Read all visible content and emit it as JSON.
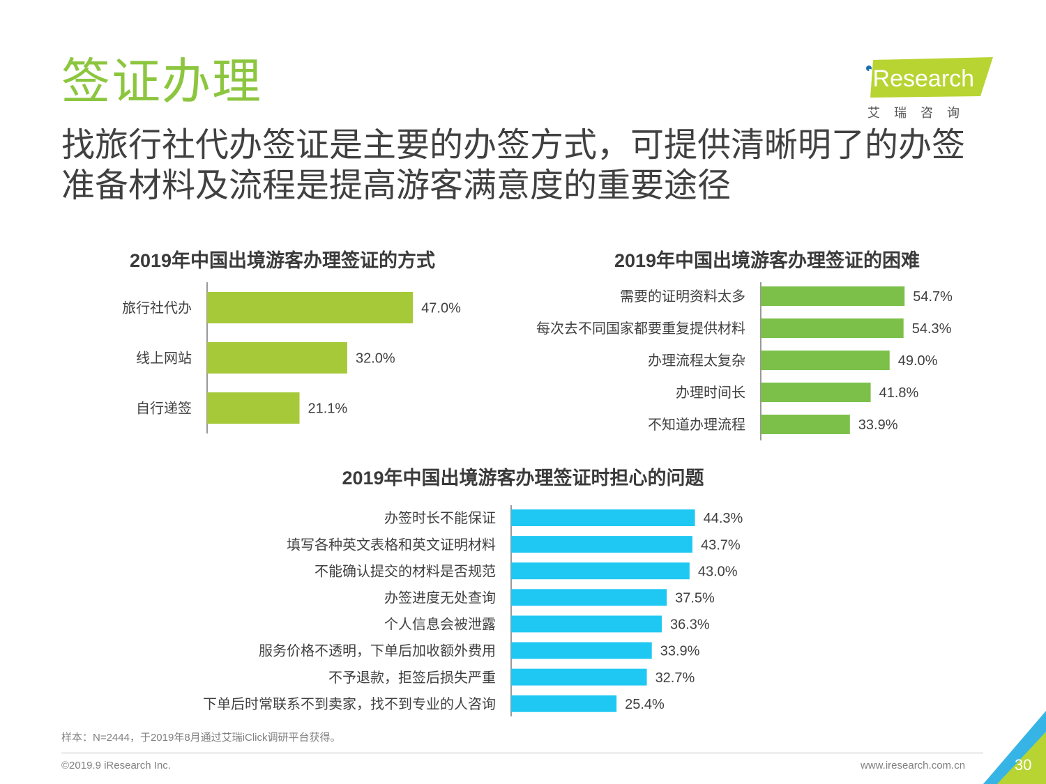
{
  "header": {
    "title": "签证办理",
    "subtitle": "找旅行社代办签证是主要的办签方式，可提供清晰明了的办签准备材料及流程是提高游客满意度的重要途径"
  },
  "logo": {
    "brand": "iResearch",
    "brand_cn": "艾瑞咨询",
    "colors": {
      "green": "#b8d432",
      "blue": "#1a6fb5"
    }
  },
  "colors": {
    "title_green": "#8cc63f",
    "bar_lime": "#a6c93a",
    "bar_green": "#7cc04a",
    "bar_cyan": "#1fc8f2"
  },
  "chart_data": [
    {
      "type": "bar",
      "orientation": "horizontal",
      "title": "2019年中国出境游客办理签证的方式",
      "categories": [
        "旅行社代办",
        "线上网站",
        "自行递签"
      ],
      "values": [
        47.0,
        32.0,
        21.1
      ],
      "value_labels": [
        "47.0%",
        "32.0%",
        "21.1%"
      ],
      "color": "#a6c93a"
    },
    {
      "type": "bar",
      "orientation": "horizontal",
      "title": "2019年中国出境游客办理签证的困难",
      "categories": [
        "需要的证明资料太多",
        "每次去不同国家都要重复提供材料",
        "办理流程太复杂",
        "办理时间长",
        "不知道办理流程"
      ],
      "values": [
        54.7,
        54.3,
        49.0,
        41.8,
        33.9
      ],
      "value_labels": [
        "54.7%",
        "54.3%",
        "49.0%",
        "41.8%",
        "33.9%"
      ],
      "color": "#7cc04a"
    },
    {
      "type": "bar",
      "orientation": "horizontal",
      "title": "2019年中国出境游客办理签证时担心的问题",
      "categories": [
        "办签时长不能保证",
        "填写各种英文表格和英文证明材料",
        "不能确认提交的材料是否规范",
        "办签进度无处查询",
        "个人信息会被泄露",
        "服务价格不透明，下单后加收额外费用",
        "不予退款，拒签后损失严重",
        "下单后时常联系不到卖家，找不到专业的人咨询"
      ],
      "values": [
        44.3,
        43.7,
        43.0,
        37.5,
        36.3,
        33.9,
        32.7,
        25.4
      ],
      "value_labels": [
        "44.3%",
        "43.7%",
        "43.0%",
        "37.5%",
        "36.3%",
        "33.9%",
        "32.7%",
        "25.4%"
      ],
      "color": "#1fc8f2"
    }
  ],
  "footer": {
    "note": "样本：N=2444，于2019年8月通过艾瑞iClick调研平台获得。",
    "copyright": "©2019.9 iResearch Inc.",
    "website": "www.iresearch.com.cn",
    "page": "30"
  }
}
